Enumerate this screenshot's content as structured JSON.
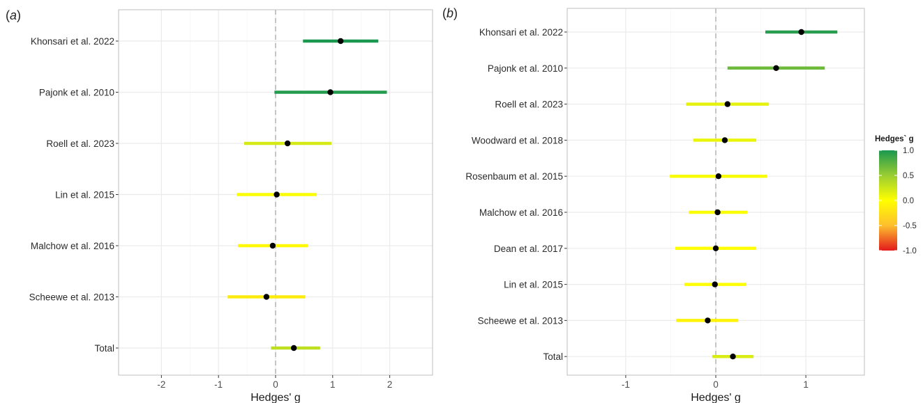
{
  "chart_data": [
    {
      "panel": "a",
      "type": "forest",
      "xlabel": "Hedges' g",
      "xlim": [
        -2.75,
        2.75
      ],
      "xticks": [
        -2,
        -1,
        0,
        1,
        2
      ],
      "reference_line": 0,
      "grid": true,
      "studies": [
        {
          "label": "Khonsari et al. 2022",
          "g": 1.14,
          "lower": 0.48,
          "upper": 1.8
        },
        {
          "label": "Pajonk et al. 2010",
          "g": 0.96,
          "lower": -0.02,
          "upper": 1.95
        },
        {
          "label": "Roell et al. 2023",
          "g": 0.21,
          "lower": -0.55,
          "upper": 0.98
        },
        {
          "label": "Lin et al. 2015",
          "g": 0.02,
          "lower": -0.68,
          "upper": 0.72
        },
        {
          "label": "Malchow et al. 2016",
          "g": -0.05,
          "lower": -0.66,
          "upper": 0.57
        },
        {
          "label": "Scheewe et al. 2013",
          "g": -0.16,
          "lower": -0.84,
          "upper": 0.52
        },
        {
          "label": "Total",
          "g": 0.32,
          "lower": -0.08,
          "upper": 0.78
        }
      ]
    },
    {
      "panel": "b",
      "type": "forest",
      "xlabel": "Hedges' g",
      "xlim": [
        -1.65,
        1.65
      ],
      "xticks": [
        -1,
        0,
        1
      ],
      "reference_line": 0,
      "grid": true,
      "studies": [
        {
          "label": "Khonsari et al. 2022",
          "g": 0.95,
          "lower": 0.55,
          "upper": 1.35
        },
        {
          "label": "Pajonk et al. 2010",
          "g": 0.67,
          "lower": 0.13,
          "upper": 1.21
        },
        {
          "label": "Roell et al. 2023",
          "g": 0.13,
          "lower": -0.33,
          "upper": 0.59
        },
        {
          "label": "Woodward et al. 2018",
          "g": 0.1,
          "lower": -0.25,
          "upper": 0.45
        },
        {
          "label": "Rosenbaum et al. 2015",
          "g": 0.03,
          "lower": -0.51,
          "upper": 0.57
        },
        {
          "label": "Malchow et al. 2016",
          "g": 0.02,
          "lower": -0.3,
          "upper": 0.35
        },
        {
          "label": "Dean et al. 2017",
          "g": 0.0,
          "lower": -0.45,
          "upper": 0.45
        },
        {
          "label": "Lin et al. 2015",
          "g": -0.01,
          "lower": -0.35,
          "upper": 0.34
        },
        {
          "label": "Scheewe et al. 2013",
          "g": -0.09,
          "lower": -0.44,
          "upper": 0.25
        },
        {
          "label": "Total",
          "g": 0.19,
          "lower": -0.04,
          "upper": 0.42
        }
      ]
    }
  ],
  "legend": {
    "title": "Hedges` g",
    "ticks": [
      "1.0",
      "0.5",
      "0.0",
      "-0.5",
      "-1.0"
    ],
    "tick_values": [
      1.0,
      0.5,
      0.0,
      -0.5,
      -1.0
    ],
    "range": [
      -1,
      1
    ],
    "colors": {
      "low": "#e31a1c",
      "lowmid": "#fdbf2d",
      "mid": "#ffff00",
      "highmid": "#9acd32",
      "high": "#1a9850"
    }
  },
  "panel_labels": [
    "a",
    "b"
  ],
  "colors": {
    "panel_border": "#bfbfbf",
    "grid_major": "#ebebeb",
    "grid_minor": "#f5f5f5",
    "zero_line": "#b8b8b8",
    "point": "#000000"
  }
}
